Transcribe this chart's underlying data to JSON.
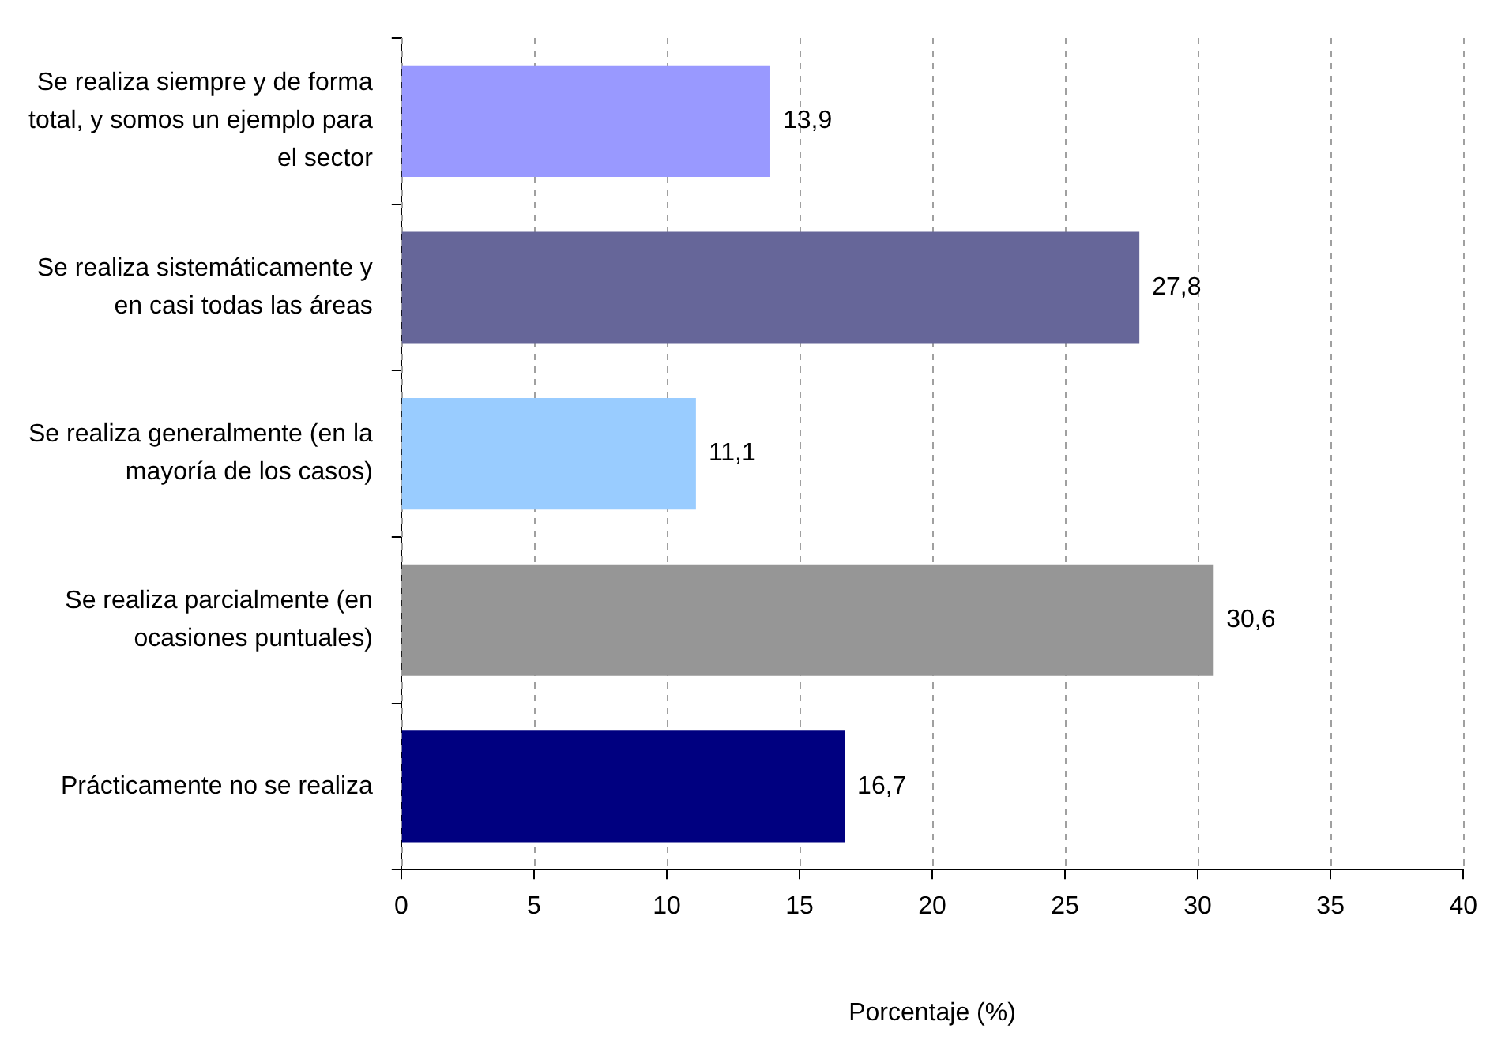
{
  "chart_data": {
    "type": "bar",
    "orientation": "horizontal",
    "xlabel": "Porcentaje (%)",
    "categories": [
      "Se realiza siempre y de forma total, y somos un ejemplo para el sector",
      "Se realiza sistemáticamente y en casi todas las áreas",
      "Se realiza generalmente (en la mayoría de los casos)",
      "Se realiza parcialmente (en ocasiones puntuales)",
      "Prácticamente no se realiza"
    ],
    "values": [
      13.9,
      27.8,
      11.1,
      30.6,
      16.7
    ],
    "colors": [
      "#9999ff",
      "#666699",
      "#99ccff",
      "#969696",
      "#000080"
    ],
    "value_labels": [
      "13,9",
      "27,8",
      "11,1",
      "30,6",
      "16,7"
    ],
    "xlim": [
      0,
      40
    ],
    "xticks": [
      0,
      5,
      10,
      15,
      20,
      25,
      30,
      35,
      40
    ],
    "grid": "x",
    "legend": false
  }
}
